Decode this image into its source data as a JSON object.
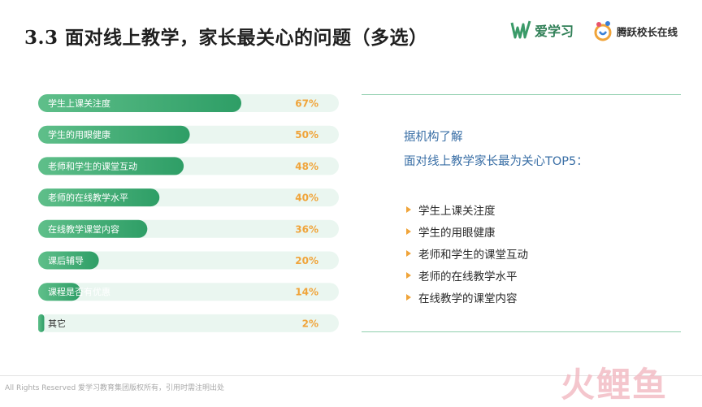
{
  "header": {
    "title": "3.3  面对线上教学，家长最关心的问题（多选）",
    "logo_aixuexi": "爱学习",
    "logo_tengyue": "腾跃校长在线"
  },
  "chart_data": {
    "type": "bar",
    "orientation": "horizontal",
    "categories": [
      "学生上课关注度",
      "学生的用眼健康",
      "老师和学生的课堂互动",
      "老师的在线教学水平",
      "在线教学课堂内容",
      "课后辅导",
      "课程是否有优惠",
      "其它"
    ],
    "values": [
      67,
      50,
      48,
      40,
      36,
      20,
      14,
      2
    ],
    "value_labels": [
      "67%",
      "50%",
      "48%",
      "40%",
      "36%",
      "20%",
      "14%",
      "2%"
    ],
    "xlim": [
      0,
      100
    ],
    "grid": false,
    "legend": "none",
    "colors": {
      "bar_start": "#5fbf8a",
      "bar_end": "#2e9e66",
      "track": "#eaf6f0",
      "value_text": "#f0a43a"
    }
  },
  "side_panel": {
    "intro_line1": "据机构了解",
    "intro_line2": "面对线上教学家长最为关心TOP5：",
    "top5": [
      "学生上课关注度",
      "学生的用眼健康",
      "老师和学生的课堂互动",
      "老师的在线教学水平",
      "在线教学的课堂内容"
    ],
    "accent_color": "#3a6fa6",
    "bullet_color": "#f0a43a"
  },
  "footer": {
    "copyright": "All Rights Reserved 爱学习教育集团版权所有，引用时需注明出处",
    "watermark": "火鲤鱼"
  }
}
